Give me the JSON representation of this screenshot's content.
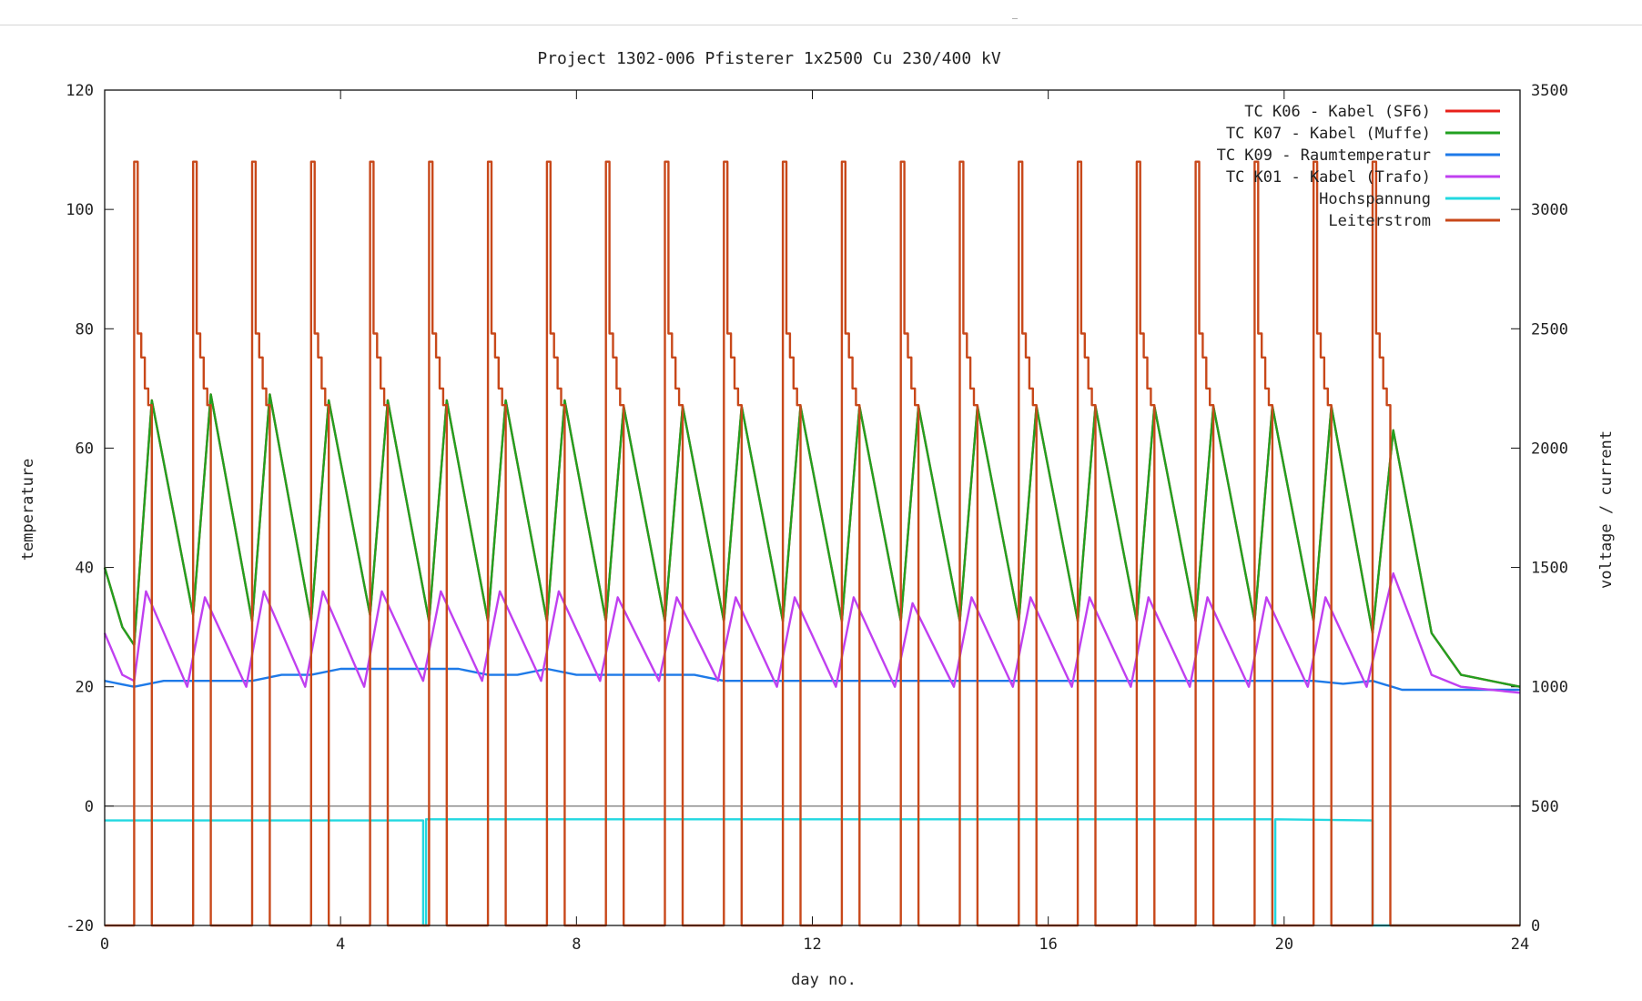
{
  "chart_data": {
    "type": "line",
    "title": "Project 1302-006  Pfisterer   1x2500 Cu 230/400 kV",
    "xlabel": "day no.",
    "ylabel": "temperature",
    "y2label": "voltage / current",
    "xlim": [
      0,
      24
    ],
    "ylim": [
      -20,
      120
    ],
    "y2lim": [
      0,
      3500
    ],
    "xticks": [
      0,
      4,
      8,
      12,
      16,
      20,
      24
    ],
    "yticks": [
      -20,
      0,
      20,
      40,
      60,
      80,
      100,
      120
    ],
    "y2ticks": [
      0,
      500,
      1000,
      1500,
      2000,
      2500,
      3000,
      3500
    ],
    "grid": false,
    "zero_line": true,
    "legend_position": "top-right",
    "series": [
      {
        "name": "TC K06 - Kabel (SF6)",
        "axis": "left",
        "color": "#e8201a",
        "description": "daily heating cycles, nearly identical to TC K07 trace",
        "points": [
          [
            0,
            40
          ],
          [
            0.3,
            30
          ],
          [
            0.5,
            27
          ],
          [
            0.8,
            68
          ],
          [
            1.5,
            32
          ],
          [
            1.8,
            69
          ],
          [
            2.5,
            31
          ],
          [
            2.8,
            69
          ],
          [
            3.5,
            31
          ],
          [
            3.8,
            68
          ],
          [
            4.5,
            32
          ],
          [
            4.8,
            68
          ],
          [
            5.5,
            31
          ],
          [
            5.8,
            68
          ],
          [
            6.5,
            31
          ],
          [
            6.8,
            68
          ],
          [
            7.5,
            31
          ],
          [
            7.8,
            68
          ],
          [
            8.5,
            31
          ],
          [
            8.8,
            67
          ],
          [
            9.5,
            31
          ],
          [
            9.8,
            67
          ],
          [
            10.5,
            31
          ],
          [
            10.8,
            67
          ],
          [
            11.5,
            31
          ],
          [
            11.8,
            67
          ],
          [
            12.5,
            31
          ],
          [
            12.8,
            67
          ],
          [
            13.5,
            31
          ],
          [
            13.8,
            67
          ],
          [
            14.5,
            31
          ],
          [
            14.8,
            67
          ],
          [
            15.5,
            31
          ],
          [
            15.8,
            67
          ],
          [
            16.5,
            31
          ],
          [
            16.8,
            67
          ],
          [
            17.5,
            31
          ],
          [
            17.8,
            67
          ],
          [
            18.5,
            31
          ],
          [
            18.8,
            67
          ],
          [
            19.5,
            31
          ],
          [
            19.8,
            67
          ],
          [
            20.5,
            31
          ],
          [
            20.8,
            67
          ],
          [
            21.5,
            29
          ],
          [
            21.85,
            63
          ],
          [
            22.5,
            29
          ],
          [
            23,
            22
          ],
          [
            24,
            20
          ]
        ]
      },
      {
        "name": "TC K07 - Kabel (Muffe)",
        "axis": "left",
        "color": "#22a020",
        "points": [
          [
            0,
            40
          ],
          [
            0.3,
            30
          ],
          [
            0.5,
            27
          ],
          [
            0.8,
            68
          ],
          [
            1.5,
            32
          ],
          [
            1.8,
            69
          ],
          [
            2.5,
            31
          ],
          [
            2.8,
            69
          ],
          [
            3.5,
            31
          ],
          [
            3.8,
            68
          ],
          [
            4.5,
            32
          ],
          [
            4.8,
            68
          ],
          [
            5.5,
            31
          ],
          [
            5.8,
            68
          ],
          [
            6.5,
            31
          ],
          [
            6.8,
            68
          ],
          [
            7.5,
            31
          ],
          [
            7.8,
            68
          ],
          [
            8.5,
            31
          ],
          [
            8.8,
            67
          ],
          [
            9.5,
            31
          ],
          [
            9.8,
            67
          ],
          [
            10.5,
            31
          ],
          [
            10.8,
            67
          ],
          [
            11.5,
            31
          ],
          [
            11.8,
            67
          ],
          [
            12.5,
            31
          ],
          [
            12.8,
            67
          ],
          [
            13.5,
            31
          ],
          [
            13.8,
            67
          ],
          [
            14.5,
            31
          ],
          [
            14.8,
            67
          ],
          [
            15.5,
            31
          ],
          [
            15.8,
            67
          ],
          [
            16.5,
            31
          ],
          [
            16.8,
            67
          ],
          [
            17.5,
            31
          ],
          [
            17.8,
            67
          ],
          [
            18.5,
            31
          ],
          [
            18.8,
            67
          ],
          [
            19.5,
            31
          ],
          [
            19.8,
            67
          ],
          [
            20.5,
            31
          ],
          [
            20.8,
            67
          ],
          [
            21.5,
            29
          ],
          [
            21.85,
            63
          ],
          [
            22.5,
            29
          ],
          [
            23,
            22
          ],
          [
            24,
            20
          ]
        ]
      },
      {
        "name": "TC K09 - Raumtemperatur",
        "axis": "left",
        "color": "#1e7ae8",
        "points": [
          [
            0,
            21
          ],
          [
            0.5,
            20
          ],
          [
            1,
            21
          ],
          [
            1.5,
            21
          ],
          [
            2,
            21
          ],
          [
            2.5,
            21
          ],
          [
            3,
            22
          ],
          [
            3.5,
            22
          ],
          [
            4,
            23
          ],
          [
            4.5,
            23
          ],
          [
            5,
            23
          ],
          [
            5.5,
            23
          ],
          [
            6,
            23
          ],
          [
            6.5,
            22
          ],
          [
            7,
            22
          ],
          [
            7.5,
            23
          ],
          [
            8,
            22
          ],
          [
            8.5,
            22
          ],
          [
            9,
            22
          ],
          [
            9.5,
            22
          ],
          [
            10,
            22
          ],
          [
            10.5,
            21
          ],
          [
            11,
            21
          ],
          [
            11.5,
            21
          ],
          [
            12,
            21
          ],
          [
            12.5,
            21
          ],
          [
            13,
            21
          ],
          [
            13.5,
            21
          ],
          [
            14,
            21
          ],
          [
            14.5,
            21
          ],
          [
            15,
            21
          ],
          [
            15.5,
            21
          ],
          [
            16,
            21
          ],
          [
            16.5,
            21
          ],
          [
            17,
            21
          ],
          [
            17.5,
            21
          ],
          [
            18,
            21
          ],
          [
            18.5,
            21
          ],
          [
            19,
            21
          ],
          [
            19.5,
            21
          ],
          [
            20,
            21
          ],
          [
            20.5,
            21
          ],
          [
            21,
            20.5
          ],
          [
            21.5,
            21
          ],
          [
            22,
            19.5
          ],
          [
            23,
            19.5
          ],
          [
            24,
            19.5
          ]
        ]
      },
      {
        "name": "TC K01 - Kabel (Trafo)",
        "axis": "left",
        "color": "#c040f0",
        "points": [
          [
            0,
            29
          ],
          [
            0.3,
            22
          ],
          [
            0.5,
            21
          ],
          [
            0.7,
            36
          ],
          [
            1.4,
            20
          ],
          [
            1.7,
            35
          ],
          [
            2.4,
            20
          ],
          [
            2.7,
            36
          ],
          [
            3.4,
            20
          ],
          [
            3.7,
            36
          ],
          [
            4.4,
            20
          ],
          [
            4.7,
            36
          ],
          [
            5.4,
            21
          ],
          [
            5.7,
            36
          ],
          [
            6.4,
            21
          ],
          [
            6.7,
            36
          ],
          [
            7.4,
            21
          ],
          [
            7.7,
            36
          ],
          [
            8.4,
            21
          ],
          [
            8.7,
            35
          ],
          [
            9.4,
            21
          ],
          [
            9.7,
            35
          ],
          [
            10.4,
            21
          ],
          [
            10.7,
            35
          ],
          [
            11.4,
            20
          ],
          [
            11.7,
            35
          ],
          [
            12.4,
            20
          ],
          [
            12.7,
            35
          ],
          [
            13.4,
            20
          ],
          [
            13.7,
            34
          ],
          [
            14.4,
            20
          ],
          [
            14.7,
            35
          ],
          [
            15.4,
            20
          ],
          [
            15.7,
            35
          ],
          [
            16.4,
            20
          ],
          [
            16.7,
            35
          ],
          [
            17.4,
            20
          ],
          [
            17.7,
            35
          ],
          [
            18.4,
            20
          ],
          [
            18.7,
            35
          ],
          [
            19.4,
            20
          ],
          [
            19.7,
            35
          ],
          [
            20.4,
            20
          ],
          [
            20.7,
            35
          ],
          [
            21.4,
            20
          ],
          [
            21.85,
            39
          ],
          [
            22.5,
            22
          ],
          [
            23,
            20
          ],
          [
            24,
            19
          ]
        ]
      },
      {
        "name": "Hochspannung",
        "axis": "right",
        "color": "#22d8e0",
        "points": [
          [
            0,
            440
          ],
          [
            5.4,
            440
          ],
          [
            5.4,
            0
          ],
          [
            5.45,
            0
          ],
          [
            5.45,
            445
          ],
          [
            19.8,
            445
          ],
          [
            19.8,
            0
          ],
          [
            19.85,
            0
          ],
          [
            19.85,
            445
          ],
          [
            21.5,
            440
          ],
          [
            21.5,
            0
          ],
          [
            24,
            0
          ]
        ]
      },
      {
        "name": "Leiterstrom",
        "axis": "right",
        "color": "#c8481a",
        "description": "load current switched ~0 A / ~3200 A each day",
        "on_intervals": [
          [
            0.5,
            0.8
          ],
          [
            1.5,
            1.8
          ],
          [
            2.5,
            2.8
          ],
          [
            3.5,
            3.8
          ],
          [
            4.5,
            4.8
          ],
          [
            5.5,
            5.8
          ],
          [
            6.5,
            6.8
          ],
          [
            7.5,
            7.8
          ],
          [
            8.5,
            8.8
          ],
          [
            9.5,
            9.8
          ],
          [
            10.5,
            10.8
          ],
          [
            11.5,
            11.8
          ],
          [
            12.5,
            12.8
          ],
          [
            13.5,
            13.8
          ],
          [
            14.5,
            14.8
          ],
          [
            15.5,
            15.8
          ],
          [
            16.5,
            16.8
          ],
          [
            17.5,
            17.8
          ],
          [
            18.5,
            18.8
          ],
          [
            19.5,
            19.8
          ],
          [
            20.5,
            20.8
          ],
          [
            21.5,
            21.8
          ]
        ],
        "peak_level": 3200,
        "off_level": 0,
        "decay_steps": [
          3200,
          2480,
          2380,
          2250,
          2180
        ]
      }
    ]
  }
}
